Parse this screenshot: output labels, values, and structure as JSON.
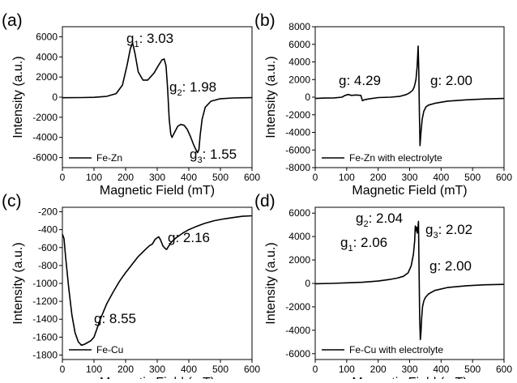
{
  "figure": {
    "panel_labels": [
      "(a)",
      "(b)",
      "(c)",
      "(d)"
    ]
  },
  "chart_data": [
    {
      "type": "line",
      "panel": "(a)",
      "xlabel": "Magnetic Field (mT)",
      "ylabel": "Intensity (a.u.)",
      "xlim": [
        0,
        600
      ],
      "ylim": [
        -7000,
        7000
      ],
      "xticks": [
        "0",
        "100",
        "200",
        "300",
        "400",
        "500",
        "600"
      ],
      "yticks": [
        "-6000",
        "-4000",
        "-2000",
        "0",
        "2000",
        "4000",
        "6000"
      ],
      "ytick_values": [
        -6000,
        -4000,
        -2000,
        0,
        2000,
        4000,
        6000
      ],
      "legend": {
        "label": "Fe-Zn",
        "position": "bottom-left"
      },
      "series": [
        {
          "name": "Fe-Zn",
          "color": "#000000",
          "x": [
            0,
            60,
            100,
            140,
            170,
            190,
            205,
            215,
            222,
            230,
            240,
            255,
            270,
            290,
            305,
            315,
            322,
            328,
            333,
            338,
            343,
            347,
            355,
            365,
            375,
            385,
            395,
            405,
            415,
            422,
            428,
            432,
            436,
            442,
            452,
            470,
            500,
            540,
            600
          ],
          "y": [
            -60,
            -40,
            -20,
            80,
            350,
            1200,
            3200,
            4800,
            5400,
            4300,
            2500,
            1700,
            1700,
            2400,
            3200,
            3700,
            3800,
            3100,
            800,
            -2200,
            -3700,
            -4000,
            -3500,
            -2900,
            -2700,
            -2800,
            -3200,
            -3900,
            -4700,
            -5200,
            -5500,
            -5200,
            -3800,
            -2200,
            -1000,
            -400,
            -150,
            -80,
            -50
          ]
        }
      ],
      "annotations": [
        {
          "label": "g",
          "sub": "1",
          "text": ": 3.03"
        },
        {
          "label": "g",
          "sub": "2",
          "text": ": 1.98"
        },
        {
          "label": "g",
          "sub": "3",
          "text": ": 1.55"
        }
      ]
    },
    {
      "type": "line",
      "panel": "(b)",
      "xlabel": "Magnetic Field (mT)",
      "ylabel": "Intensity (a.u.)",
      "xlim": [
        0,
        600
      ],
      "ylim": [
        -8000,
        8000
      ],
      "xticks": [
        "0",
        "100",
        "200",
        "300",
        "400",
        "500",
        "600"
      ],
      "yticks": [
        "-8000",
        "-6000",
        "-4000",
        "-2000",
        "0",
        "2000",
        "4000",
        "6000",
        "8000"
      ],
      "ytick_values": [
        -8000,
        -6000,
        -4000,
        -2000,
        0,
        2000,
        4000,
        6000,
        8000
      ],
      "legend": {
        "label": "Fe-Zn with electrolyte",
        "position": "bottom-left"
      },
      "series": [
        {
          "name": "Fe-Zn with electrolyte",
          "color": "#000000",
          "x": [
            0,
            30,
            60,
            85,
            95,
            105,
            115,
            130,
            145,
            150,
            155,
            170,
            200,
            240,
            270,
            290,
            300,
            310,
            315,
            320,
            324,
            327,
            329,
            331,
            333,
            336,
            340,
            345,
            352,
            360,
            380,
            420,
            480,
            540,
            600
          ],
          "y": [
            -150,
            -100,
            -80,
            0,
            200,
            300,
            200,
            250,
            200,
            -400,
            -300,
            -200,
            -50,
            0,
            100,
            300,
            500,
            800,
            1200,
            2000,
            3500,
            5800,
            3000,
            -1500,
            -5500,
            -4000,
            -2500,
            -1600,
            -1100,
            -900,
            -700,
            -450,
            -300,
            -200,
            -150
          ]
        }
      ],
      "annotations": [
        {
          "text": "g: 4.29"
        },
        {
          "text": "g: 2.00"
        }
      ]
    },
    {
      "type": "line",
      "panel": "(c)",
      "xlabel": "Magnetic Field (mT)",
      "ylabel": "Intensity (a.u.)",
      "xlim": [
        0,
        600
      ],
      "ylim": [
        -1850,
        -150
      ],
      "xticks": [
        "0",
        "100",
        "200",
        "300",
        "400",
        "500",
        "600"
      ],
      "yticks": [
        "-200",
        "-400",
        "-600",
        "-800",
        "-1000",
        "-1200",
        "-1400",
        "-1600",
        "-1800"
      ],
      "ytick_values": [
        -200,
        -400,
        -600,
        -800,
        -1000,
        -1200,
        -1400,
        -1600,
        -1800
      ],
      "legend": {
        "label": "Fe-Cu",
        "position": "bottom-left"
      },
      "series": [
        {
          "name": "Fe-Cu",
          "color": "#000000",
          "x": [
            0,
            5,
            10,
            20,
            30,
            40,
            50,
            60,
            70,
            80,
            90,
            100,
            110,
            120,
            140,
            160,
            180,
            200,
            220,
            240,
            260,
            275,
            285,
            293,
            300,
            305,
            310,
            318,
            325,
            330,
            335,
            345,
            360,
            380,
            400,
            420,
            450,
            480,
            510,
            540,
            570,
            600
          ],
          "y": [
            -450,
            -500,
            -700,
            -1050,
            -1350,
            -1550,
            -1650,
            -1690,
            -1680,
            -1660,
            -1640,
            -1600,
            -1500,
            -1400,
            -1230,
            -1100,
            -980,
            -880,
            -790,
            -700,
            -630,
            -580,
            -560,
            -510,
            -490,
            -480,
            -510,
            -580,
            -610,
            -620,
            -590,
            -540,
            -490,
            -440,
            -400,
            -370,
            -330,
            -300,
            -280,
            -265,
            -250,
            -245
          ]
        }
      ],
      "annotations": [
        {
          "text": "g: 2.16"
        },
        {
          "text": "g: 8.55"
        }
      ]
    },
    {
      "type": "line",
      "panel": "(d)",
      "xlabel": "Magnetic Field (mT)",
      "ylabel": "Intensity (a.u.)",
      "xlim": [
        0,
        600
      ],
      "ylim": [
        -6500,
        6500
      ],
      "xticks": [
        "0",
        "100",
        "200",
        "300",
        "400",
        "500",
        "600"
      ],
      "yticks": [
        "-6000",
        "-4000",
        "-2000",
        "0",
        "2000",
        "4000",
        "6000"
      ],
      "ytick_values": [
        -6000,
        -4000,
        -2000,
        0,
        2000,
        4000,
        6000
      ],
      "legend": {
        "label": "Fe-Cu with electrolyte",
        "position": "bottom-left"
      },
      "series": [
        {
          "name": "Fe-Cu with electrolyte",
          "color": "#000000",
          "x": [
            0,
            50,
            100,
            150,
            200,
            240,
            260,
            280,
            295,
            305,
            312,
            316,
            318,
            320,
            322,
            324,
            326,
            328,
            330,
            332,
            334,
            336,
            338,
            341,
            345,
            350,
            360,
            380,
            420,
            480,
            540,
            600
          ],
          "y": [
            -30,
            0,
            50,
            100,
            200,
            350,
            450,
            600,
            900,
            1500,
            2500,
            3600,
            4900,
            4500,
            4800,
            4300,
            4600,
            5300,
            1500,
            -3000,
            -4800,
            -4200,
            -3000,
            -2000,
            -1500,
            -1200,
            -900,
            -600,
            -350,
            -200,
            -120,
            -80
          ]
        }
      ],
      "annotations": [
        {
          "label": "g",
          "sub": "2",
          "text": ": 2.04"
        },
        {
          "label": "g",
          "sub": "1",
          "text": ": 2.06"
        },
        {
          "label": "g",
          "sub": "3",
          "text": ": 2.02"
        },
        {
          "text": "g: 2.00"
        }
      ]
    }
  ]
}
